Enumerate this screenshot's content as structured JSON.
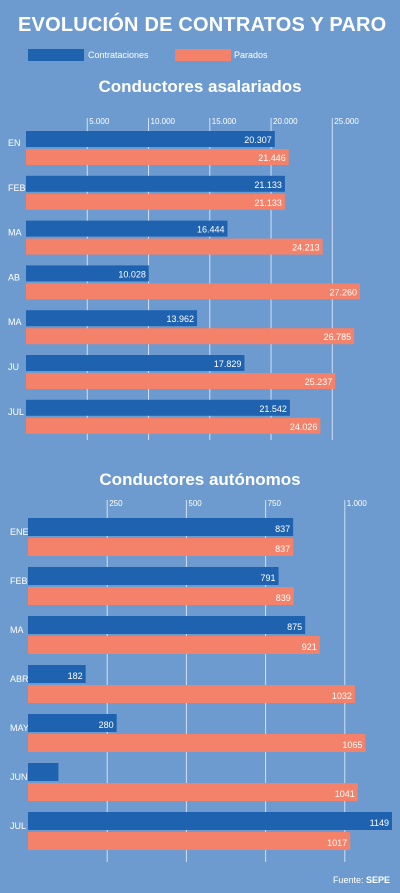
{
  "header": {
    "title": "EVOLUCIÓN DE CONTRATOS Y PARO"
  },
  "legend": [
    {
      "label": "Contrataciones",
      "color": "#1f63b0"
    },
    {
      "label": "Parados",
      "color": "#f4826a"
    }
  ],
  "source": {
    "prefix": "Fuente:",
    "name": "SEPE"
  },
  "colors": {
    "background": "#6e9bcf",
    "contrataciones": "#1f63b0",
    "parados": "#f4826a",
    "gridline": "#cfe0f3"
  },
  "chart_data": [
    {
      "type": "bar",
      "orientation": "horizontal",
      "title": "Conductores asalariados",
      "categories": [
        "EN",
        "FEB",
        "MA",
        "AB",
        "MA",
        "JU",
        "JUL"
      ],
      "series": [
        {
          "name": "Contrataciones",
          "values": [
            20307,
            21133,
            16444,
            10028,
            13962,
            17829,
            21542
          ],
          "labels": [
            "20.307",
            "21.133",
            "16.444",
            "10.028",
            "13.962",
            "17.829",
            "21.542"
          ]
        },
        {
          "name": "Parados",
          "values": [
            21446,
            21133,
            24213,
            27260,
            26785,
            25237,
            24026
          ],
          "labels": [
            "21.446",
            "21.133",
            "24.213",
            "27.260",
            "26.785",
            "25.237",
            "24.026"
          ]
        }
      ],
      "xlim": [
        0,
        27260
      ],
      "ticks": [
        5000,
        10000,
        15000,
        20000,
        25000
      ],
      "tick_labels": [
        "5.000",
        "10.000",
        "15.000",
        "20.000",
        "25.000"
      ],
      "grid": true
    },
    {
      "type": "bar",
      "orientation": "horizontal",
      "title": "Conductores autónomos",
      "categories": [
        "ENE",
        "FEB",
        "MA",
        "ABR",
        "MAY",
        "JUN",
        "JUL"
      ],
      "series": [
        {
          "name": "Contrataciones",
          "values": [
            837,
            791,
            875,
            182,
            280,
            96,
            1149
          ],
          "labels": [
            "837",
            "791",
            "875",
            "182",
            "280",
            "",
            "1149"
          ]
        },
        {
          "name": "Parados",
          "values": [
            837,
            839,
            921,
            1032,
            1065,
            1041,
            1017
          ],
          "labels": [
            "837",
            "839",
            "921",
            "1032",
            "1065",
            "1041",
            "1017"
          ]
        }
      ],
      "xlim": [
        0,
        1149
      ],
      "ticks": [
        250,
        500,
        750,
        1000
      ],
      "tick_labels": [
        "250",
        "500",
        "750",
        "1.000"
      ],
      "grid": true
    }
  ]
}
